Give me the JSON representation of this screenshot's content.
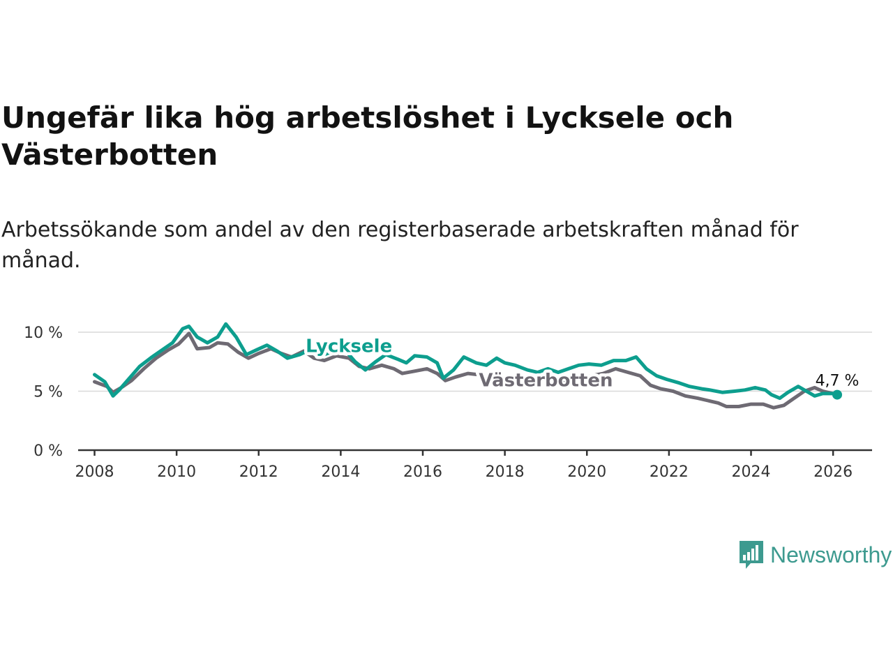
{
  "title": "Ungefär lika hög arbetslöshet i Lycksele och Västerbotten",
  "subtitle": "Arbetssökande som andel av den registerbaserade arbetskraften månad för månad.",
  "brand": {
    "name": "Newsworthy",
    "color": "#3d9a8f",
    "logo_icon": "bar-chart-speech-bubble-icon"
  },
  "chart_data": {
    "type": "line",
    "title": "Ungefär lika hög arbetslöshet i Lycksele och Västerbotten",
    "xlabel": "",
    "ylabel": "",
    "xlim": [
      2007.6,
      2026.95
    ],
    "ylim": [
      0,
      10.5
    ],
    "x_ticks": [
      2008,
      2010,
      2012,
      2014,
      2016,
      2018,
      2020,
      2022,
      2024,
      2026
    ],
    "x_tick_labels": [
      "2008",
      "2010",
      "2012",
      "2014",
      "2016",
      "2018",
      "2020",
      "2022",
      "2024",
      "2026"
    ],
    "y_ticks": [
      0,
      5,
      10
    ],
    "y_tick_labels": [
      "0 %",
      "5 %",
      "10 %"
    ],
    "grid": true,
    "last_value_label": "4,7 %",
    "series": [
      {
        "name": "Lycksele",
        "color": "#0d9e8e",
        "label_x": 2014.2,
        "label_y": 8.9,
        "points": [
          [
            2008.0,
            6.4
          ],
          [
            2008.25,
            5.8
          ],
          [
            2008.45,
            4.6
          ],
          [
            2008.6,
            5.1
          ],
          [
            2008.85,
            6.1
          ],
          [
            2009.1,
            7.1
          ],
          [
            2009.4,
            7.9
          ],
          [
            2009.65,
            8.5
          ],
          [
            2009.9,
            9.1
          ],
          [
            2010.15,
            10.3
          ],
          [
            2010.3,
            10.5
          ],
          [
            2010.5,
            9.6
          ],
          [
            2010.75,
            9.1
          ],
          [
            2011.0,
            9.6
          ],
          [
            2011.2,
            10.7
          ],
          [
            2011.45,
            9.6
          ],
          [
            2011.7,
            8.1
          ],
          [
            2011.95,
            8.5
          ],
          [
            2012.2,
            8.9
          ],
          [
            2012.45,
            8.4
          ],
          [
            2012.7,
            7.8
          ],
          [
            2013.0,
            8.1
          ],
          [
            2013.3,
            8.6
          ],
          [
            2013.6,
            8.1
          ],
          [
            2013.9,
            8.5
          ],
          [
            2014.15,
            8.3
          ],
          [
            2014.35,
            7.5
          ],
          [
            2014.6,
            6.8
          ],
          [
            2014.85,
            7.5
          ],
          [
            2015.1,
            8.1
          ],
          [
            2015.4,
            7.7
          ],
          [
            2015.6,
            7.4
          ],
          [
            2015.8,
            8.0
          ],
          [
            2016.1,
            7.9
          ],
          [
            2016.35,
            7.4
          ],
          [
            2016.5,
            6.1
          ],
          [
            2016.75,
            6.8
          ],
          [
            2017.0,
            7.9
          ],
          [
            2017.3,
            7.4
          ],
          [
            2017.55,
            7.2
          ],
          [
            2017.8,
            7.8
          ],
          [
            2018.0,
            7.4
          ],
          [
            2018.25,
            7.2
          ],
          [
            2018.55,
            6.8
          ],
          [
            2018.8,
            6.6
          ],
          [
            2019.05,
            6.9
          ],
          [
            2019.3,
            6.6
          ],
          [
            2019.55,
            6.9
          ],
          [
            2019.8,
            7.2
          ],
          [
            2020.05,
            7.3
          ],
          [
            2020.35,
            7.2
          ],
          [
            2020.65,
            7.6
          ],
          [
            2020.95,
            7.6
          ],
          [
            2021.2,
            7.9
          ],
          [
            2021.45,
            6.9
          ],
          [
            2021.7,
            6.3
          ],
          [
            2021.95,
            6.0
          ],
          [
            2022.25,
            5.7
          ],
          [
            2022.5,
            5.4
          ],
          [
            2022.8,
            5.2
          ],
          [
            2023.0,
            5.1
          ],
          [
            2023.3,
            4.9
          ],
          [
            2023.6,
            5.0
          ],
          [
            2023.85,
            5.1
          ],
          [
            2024.1,
            5.3
          ],
          [
            2024.35,
            5.1
          ],
          [
            2024.5,
            4.7
          ],
          [
            2024.7,
            4.4
          ],
          [
            2024.9,
            4.9
          ],
          [
            2025.15,
            5.4
          ],
          [
            2025.35,
            5.0
          ],
          [
            2025.55,
            4.6
          ],
          [
            2025.75,
            4.8
          ],
          [
            2026.0,
            4.8
          ],
          [
            2026.1,
            4.7
          ]
        ]
      },
      {
        "name": "Västerbotten",
        "color": "#6e6a73",
        "label_x": 2019.0,
        "label_y": 6.0,
        "points": [
          [
            2008.0,
            5.8
          ],
          [
            2008.3,
            5.4
          ],
          [
            2008.45,
            4.9
          ],
          [
            2008.65,
            5.3
          ],
          [
            2008.9,
            5.9
          ],
          [
            2009.2,
            6.9
          ],
          [
            2009.5,
            7.8
          ],
          [
            2009.8,
            8.5
          ],
          [
            2010.05,
            9.0
          ],
          [
            2010.3,
            9.9
          ],
          [
            2010.5,
            8.6
          ],
          [
            2010.8,
            8.7
          ],
          [
            2011.0,
            9.1
          ],
          [
            2011.25,
            9.0
          ],
          [
            2011.5,
            8.3
          ],
          [
            2011.75,
            7.8
          ],
          [
            2012.0,
            8.2
          ],
          [
            2012.3,
            8.6
          ],
          [
            2012.55,
            8.2
          ],
          [
            2012.8,
            7.9
          ],
          [
            2013.1,
            8.4
          ],
          [
            2013.35,
            7.8
          ],
          [
            2013.6,
            7.6
          ],
          [
            2013.9,
            8.0
          ],
          [
            2014.2,
            7.8
          ],
          [
            2014.45,
            7.1
          ],
          [
            2014.7,
            6.9
          ],
          [
            2015.0,
            7.2
          ],
          [
            2015.3,
            6.9
          ],
          [
            2015.5,
            6.5
          ],
          [
            2015.8,
            6.7
          ],
          [
            2016.1,
            6.9
          ],
          [
            2016.35,
            6.5
          ],
          [
            2016.55,
            5.9
          ],
          [
            2016.8,
            6.2
          ],
          [
            2017.1,
            6.5
          ],
          [
            2017.35,
            6.4
          ],
          [
            2017.6,
            5.9
          ],
          [
            2017.9,
            6.1
          ],
          [
            2018.2,
            6.2
          ],
          [
            2018.45,
            5.6
          ],
          [
            2018.7,
            5.4
          ],
          [
            2019.0,
            5.6
          ],
          [
            2019.3,
            5.6
          ],
          [
            2019.55,
            5.9
          ],
          [
            2019.8,
            6.3
          ],
          [
            2020.1,
            6.3
          ],
          [
            2020.4,
            6.5
          ],
          [
            2020.7,
            6.9
          ],
          [
            2021.0,
            6.6
          ],
          [
            2021.3,
            6.3
          ],
          [
            2021.55,
            5.5
          ],
          [
            2021.8,
            5.2
          ],
          [
            2022.1,
            5.0
          ],
          [
            2022.4,
            4.6
          ],
          [
            2022.7,
            4.4
          ],
          [
            2022.95,
            4.2
          ],
          [
            2023.2,
            4.0
          ],
          [
            2023.4,
            3.7
          ],
          [
            2023.7,
            3.7
          ],
          [
            2024.0,
            3.9
          ],
          [
            2024.3,
            3.9
          ],
          [
            2024.55,
            3.6
          ],
          [
            2024.8,
            3.8
          ],
          [
            2025.05,
            4.4
          ],
          [
            2025.3,
            5.0
          ],
          [
            2025.55,
            5.3
          ],
          [
            2025.75,
            5.0
          ],
          [
            2026.0,
            4.8
          ],
          [
            2026.1,
            4.7
          ]
        ]
      }
    ]
  }
}
